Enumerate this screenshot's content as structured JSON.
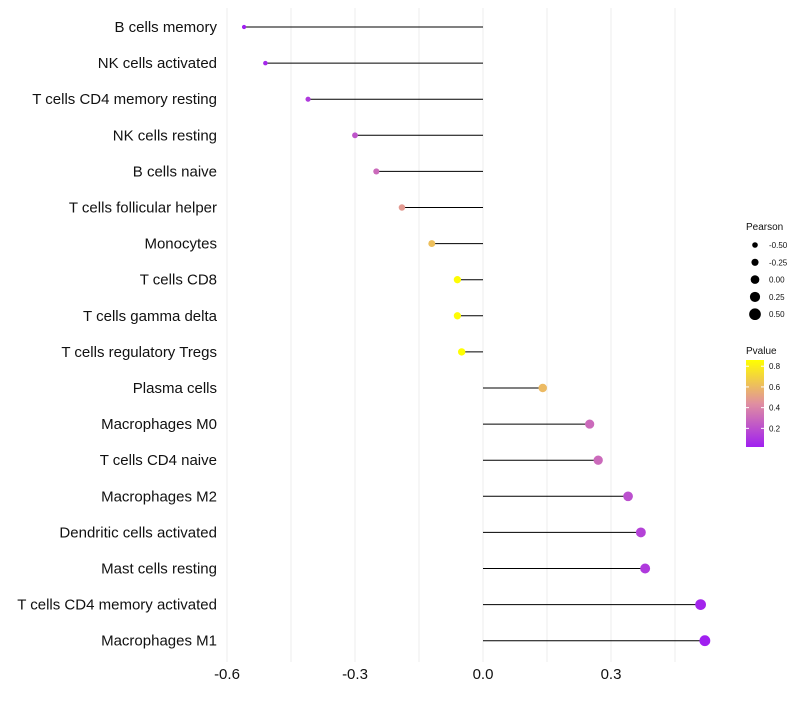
{
  "chart_data": {
    "type": "lollipop",
    "title": "",
    "xlabel": "",
    "ylabel": "",
    "xlim": [
      -0.6,
      0.53
    ],
    "x_ticks": [
      -0.6,
      -0.3,
      0.0,
      0.3
    ],
    "x_tick_labels": [
      "-0.6",
      "-0.3",
      "0.0",
      "0.3"
    ],
    "grid": true,
    "categories": [
      "B cells memory",
      "NK cells activated",
      "T cells CD4 memory resting",
      "NK cells resting",
      "B cells naive",
      "T cells follicular helper",
      "Monocytes",
      "T cells CD8",
      "T cells gamma delta",
      "T cells regulatory  Tregs ",
      "Plasma cells",
      "Macrophages M0",
      "T cells CD4 naive",
      "Macrophages M2",
      "Dendritic cells activated",
      "Mast cells resting",
      "T cells CD4 memory activated",
      "Macrophages M1"
    ],
    "values": [
      -0.56,
      -0.51,
      -0.41,
      -0.3,
      -0.25,
      -0.19,
      -0.12,
      -0.06,
      -0.06,
      -0.05,
      0.14,
      0.25,
      0.27,
      0.34,
      0.37,
      0.38,
      0.51,
      0.52
    ],
    "pvalues": [
      0.02,
      0.05,
      0.12,
      0.22,
      0.3,
      0.48,
      0.62,
      0.85,
      0.85,
      0.86,
      0.6,
      0.3,
      0.3,
      0.2,
      0.15,
      0.12,
      0.04,
      0.02
    ],
    "size_legend": {
      "title": "Pearson",
      "values": [
        -0.5,
        -0.25,
        0.0,
        0.25,
        0.5
      ],
      "labels": [
        "-0.50",
        "-0.25",
        "0.00",
        "0.25",
        "0.50"
      ]
    },
    "color_legend": {
      "title": "Pvalue",
      "range": [
        0.02,
        0.86
      ],
      "ticks": [
        0.8,
        0.6,
        0.4,
        0.2
      ],
      "tick_labels": [
        "0.8",
        "0.6",
        "0.4",
        "0.2"
      ],
      "low_color": "#a020f0",
      "mid_color": "#e08fa0",
      "high_color": "#ffff00"
    },
    "stem_color": "#000000"
  }
}
